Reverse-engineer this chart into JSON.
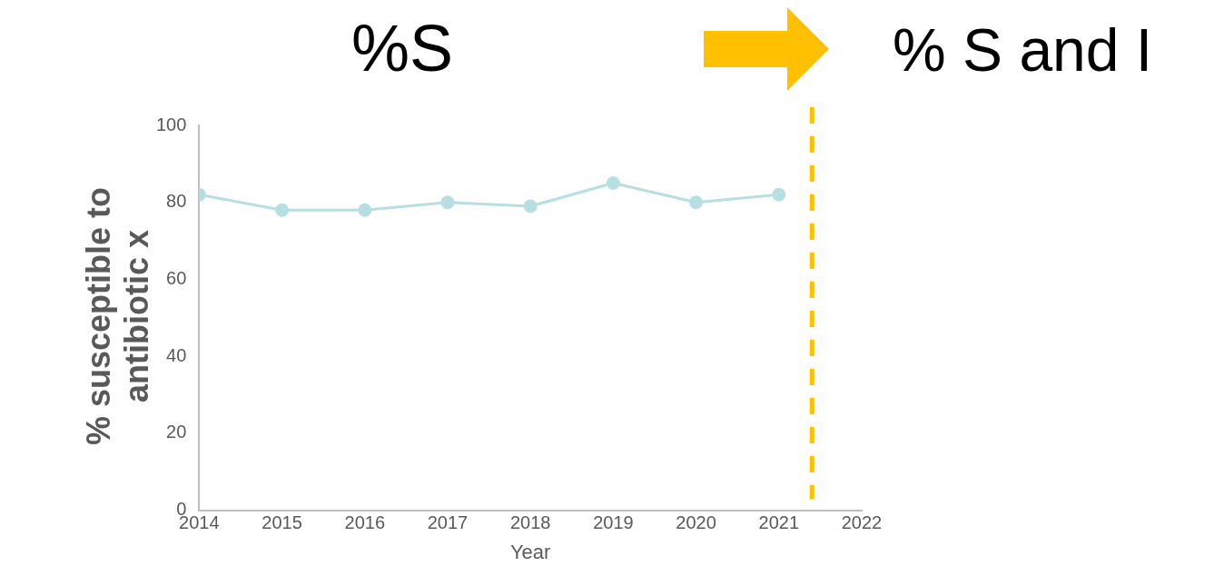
{
  "chart_data": {
    "type": "line",
    "title": "%S",
    "annotations": [
      "% S and I"
    ],
    "xlabel": "Year",
    "ylabel": "% susceptible to antibiotic x",
    "x": [
      2014,
      2015,
      2016,
      2017,
      2018,
      2019,
      2020,
      2021
    ],
    "series": [
      {
        "color": "#b7dfe2",
        "values": [
          82,
          78,
          78,
          80,
          79,
          85,
          80,
          82
        ]
      }
    ],
    "xlim": [
      2014,
      2022
    ],
    "xticks": [
      2014,
      2015,
      2016,
      2017,
      2018,
      2019,
      2020,
      2021,
      2022
    ],
    "ylim": [
      0,
      100
    ],
    "yticks": [
      0,
      20,
      40,
      60,
      80,
      100
    ],
    "ref_lines": [
      {
        "axis": "x",
        "value": 2021.4,
        "color": "#ffc000",
        "line_style": "dashed"
      }
    ],
    "grid": false,
    "legend": false,
    "marker": "circle",
    "line_style": "solid"
  }
}
